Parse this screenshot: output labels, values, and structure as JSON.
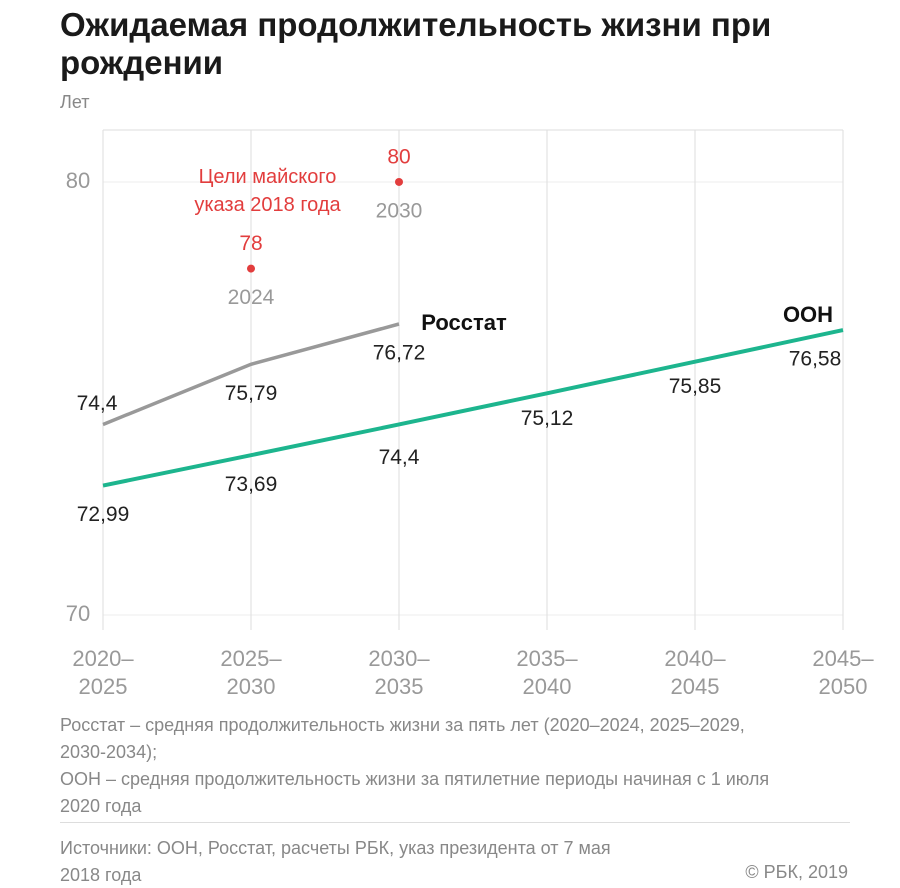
{
  "chart_data": {
    "type": "line",
    "title": "Ожидаемая продолжительность жизни при рождении",
    "y_label": "Лет",
    "categories": [
      "2020–2025",
      "2025–2030",
      "2030–2035",
      "2035–2040",
      "2040–2045",
      "2045–2050"
    ],
    "series": [
      {
        "name": "Росстат",
        "color": "#999999",
        "values": [
          74.4,
          75.79,
          76.72,
          null,
          null,
          null
        ],
        "value_labels": [
          "74,4",
          "75,79",
          "76,72",
          null,
          null,
          null
        ]
      },
      {
        "name": "ООН",
        "color": "#1db58e",
        "values": [
          72.99,
          73.69,
          74.4,
          75.12,
          75.85,
          76.58
        ],
        "value_labels": [
          "72,99",
          "73,69",
          "74,4",
          "75,12",
          "75,85",
          "76,58"
        ]
      },
      {
        "name": "Цели майского указа 2018 года",
        "color": "#e23d3d",
        "style": "points",
        "values": [
          null,
          78,
          80,
          null,
          null,
          null
        ],
        "point_labels": [
          null,
          "2024",
          "2030",
          null,
          null,
          null
        ]
      }
    ],
    "ylim": [
      70,
      81.2
    ],
    "yticks": [
      70,
      80
    ],
    "grid": true,
    "notes": [
      "Росстат – средняя продолжительность жизни за пять лет (2020–2024, 2025–2029, 2030-2034);",
      "ООН – средняя продолжительность жизни за пятилетние периоды начиная с 1 июля 2020 года"
    ],
    "source": "Источники: ООН, Росстат, расчеты РБК, указ президента от 7 мая 2018 года",
    "copyright": "© РБК, 2019"
  }
}
